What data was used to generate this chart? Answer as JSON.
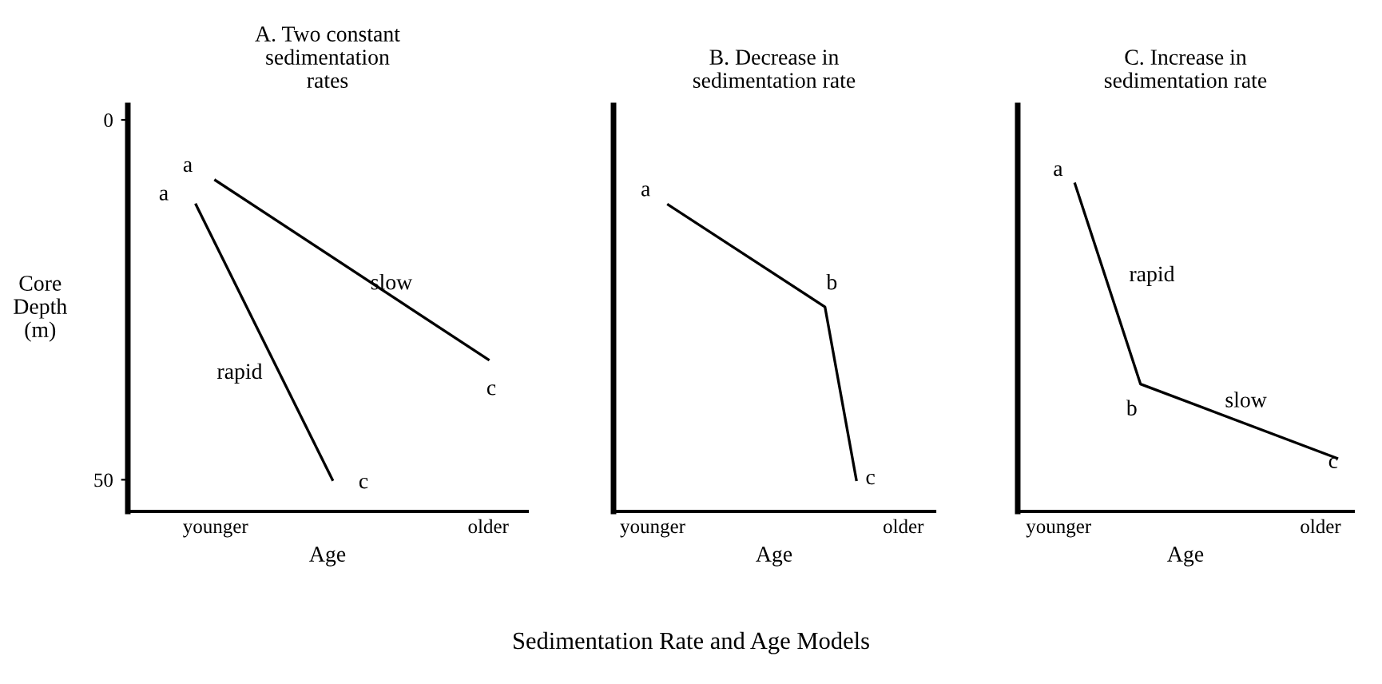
{
  "chart_data": [
    {
      "type": "line",
      "title": "A. Two constant\nsedimentation\nrates",
      "xlabel": "Age",
      "ylabel": "Core\nDepth\n(m)",
      "categories": [
        null,
        null,
        null,
        null,
        "younger",
        null,
        null,
        null,
        null,
        null,
        null,
        null,
        null,
        null,
        null,
        null,
        null,
        null,
        "older",
        null,
        null
      ],
      "ylim": [
        54.4,
        -2
      ],
      "yticks": [
        0,
        50
      ],
      "series": [
        {
          "color": "#000000",
          "values": [
            null,
            null,
            null,
            null,
            8.4,
            null,
            null,
            null,
            null,
            null,
            null,
            null,
            null,
            null,
            null,
            null,
            null,
            null,
            33.3,
            null,
            null
          ]
        },
        {
          "color": "#000000",
          "values": [
            null,
            null,
            null,
            11.8,
            null,
            null,
            null,
            null,
            null,
            null,
            50,
            null,
            null,
            null,
            null,
            null,
            null,
            null,
            null,
            null,
            null
          ]
        }
      ],
      "annotations": [
        "a",
        "a",
        "slow",
        "rapid",
        "c",
        "c",
        "Sedimentation Rate and Age Models"
      ]
    },
    {
      "type": "line",
      "title": "B. Decrease in\nsedimentation rate",
      "xlabel": "Age",
      "categories": [
        null,
        null,
        "younger",
        null,
        null,
        null,
        null,
        null,
        null,
        null,
        null,
        null,
        null,
        null,
        null,
        null,
        null,
        null,
        "older",
        null,
        null
      ],
      "ylim": [
        54.4,
        -2
      ],
      "tick_labels": "x",
      "series": [
        {
          "color": "#000000",
          "values": [
            null,
            null,
            null,
            11.8,
            null,
            null,
            null,
            null,
            null,
            null,
            null,
            null,
            null,
            26,
            null,
            50,
            null,
            null,
            null,
            null,
            null
          ]
        }
      ],
      "annotations": [
        "a",
        "b",
        "c"
      ]
    },
    {
      "type": "line",
      "title": "C. Increase in\nsedimentation rate",
      "xlabel": "Age",
      "categories": [
        null,
        null,
        "younger",
        null,
        null,
        null,
        null,
        null,
        null,
        null,
        null,
        null,
        null,
        null,
        null,
        null,
        null,
        null,
        "older",
        null,
        null
      ],
      "ylim": [
        54.4,
        -2
      ],
      "tick_labels": "x",
      "series": [
        {
          "color": "#000000",
          "values": [
            null,
            null,
            null,
            8.9,
            null,
            null,
            null,
            36.7,
            null,
            null,
            null,
            null,
            null,
            null,
            null,
            null,
            null,
            null,
            null,
            47,
            null
          ]
        }
      ],
      "annotations": [
        "a",
        "rapid",
        "b",
        "slow",
        "c"
      ]
    }
  ]
}
